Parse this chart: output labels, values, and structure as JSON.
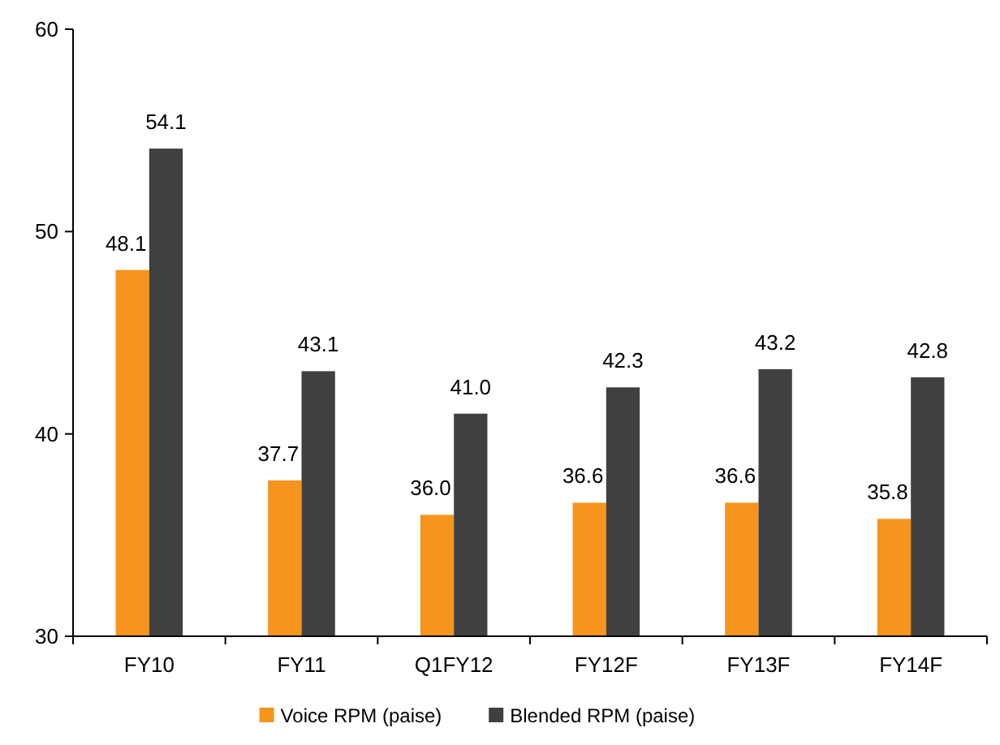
{
  "chart_data": {
    "type": "bar",
    "categories": [
      "FY10",
      "FY11",
      "Q1FY12",
      "FY12F",
      "FY13F",
      "FY14F"
    ],
    "series": [
      {
        "name": "Voice RPM (paise)",
        "color": "#f7941d",
        "values": [
          48.1,
          37.7,
          36.0,
          36.6,
          36.6,
          35.8
        ],
        "value_labels": [
          "48.1",
          "37.7",
          "36.0",
          "36.6",
          "36.6",
          "35.8"
        ]
      },
      {
        "name": "Blended RPM (paise)",
        "color": "#404040",
        "values": [
          54.1,
          43.1,
          41.0,
          42.3,
          43.2,
          42.8
        ],
        "value_labels": [
          "54.1",
          "43.1",
          "41.0",
          "42.3",
          "43.2",
          "42.8"
        ]
      }
    ],
    "ylim": [
      30,
      60
    ],
    "yticks": [
      30,
      40,
      50,
      60
    ],
    "legend": "bottom"
  }
}
